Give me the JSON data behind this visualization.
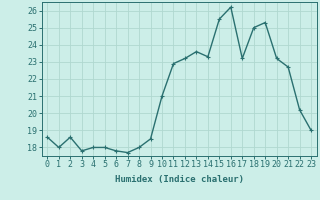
{
  "x": [
    0,
    1,
    2,
    3,
    4,
    5,
    6,
    7,
    8,
    9,
    10,
    11,
    12,
    13,
    14,
    15,
    16,
    17,
    18,
    19,
    20,
    21,
    22,
    23
  ],
  "y": [
    18.6,
    18.0,
    18.6,
    17.8,
    18.0,
    18.0,
    17.8,
    17.7,
    18.0,
    18.5,
    21.0,
    22.9,
    23.2,
    23.6,
    23.3,
    25.5,
    26.2,
    23.2,
    25.0,
    25.3,
    23.2,
    22.7,
    20.2,
    19.0
  ],
  "line_color": "#2a7070",
  "marker": "+",
  "marker_size": 3.5,
  "marker_color": "#2a7070",
  "bg_color": "#cceee8",
  "grid_color": "#b0d8d0",
  "xlabel": "Humidex (Indice chaleur)",
  "ylim": [
    17.5,
    26.5
  ],
  "xlim": [
    -0.5,
    23.5
  ],
  "yticks": [
    18,
    19,
    20,
    21,
    22,
    23,
    24,
    25,
    26
  ],
  "xticks": [
    0,
    1,
    2,
    3,
    4,
    5,
    6,
    7,
    8,
    9,
    10,
    11,
    12,
    13,
    14,
    15,
    16,
    17,
    18,
    19,
    20,
    21,
    22,
    23
  ],
  "xlabel_fontsize": 6.5,
  "tick_fontsize": 6.0,
  "linewidth": 1.0
}
